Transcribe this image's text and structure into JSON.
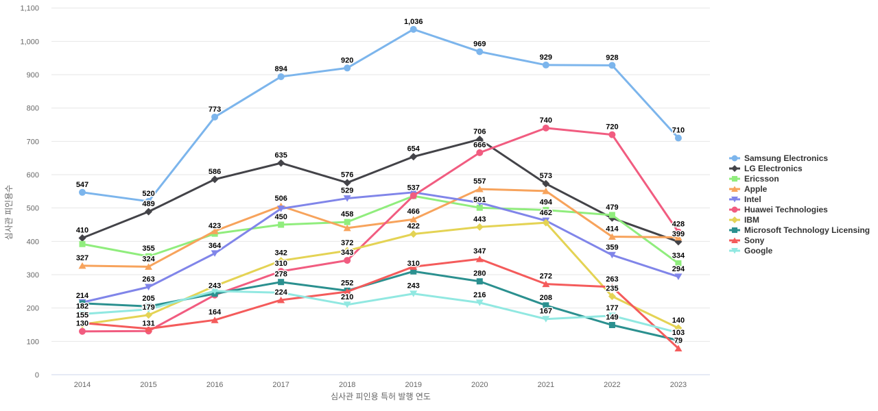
{
  "chart_data": {
    "type": "line",
    "title": "",
    "xlabel": "심사관 피인용 특허 발행 연도",
    "ylabel": "심사관 피인용수",
    "categories": [
      "2014",
      "2015",
      "2016",
      "2017",
      "2018",
      "2019",
      "2020",
      "2021",
      "2022",
      "2023"
    ],
    "ylim": [
      0,
      1100
    ],
    "ytick_interval": 100,
    "yticks": [
      0,
      100,
      200,
      300,
      400,
      500,
      600,
      700,
      800,
      900,
      1000,
      1100
    ],
    "grid": "horizontal",
    "legend_position": "right",
    "series": [
      {
        "name": "Samsung Electronics",
        "color": "#7cb5ec",
        "marker": "circle",
        "values": [
          547,
          520,
          773,
          894,
          920,
          1036,
          969,
          929,
          928,
          710
        ],
        "label_shown": [
          true,
          true,
          true,
          true,
          true,
          true,
          true,
          true,
          true,
          true
        ]
      },
      {
        "name": "LG Electronics",
        "color": "#434348",
        "marker": "diamond",
        "values": [
          410,
          489,
          586,
          635,
          576,
          654,
          706,
          573,
          470,
          399
        ],
        "label_shown": [
          true,
          true,
          true,
          true,
          true,
          true,
          true,
          true,
          false,
          true
        ]
      },
      {
        "name": "Ericsson",
        "color": "#90ed7d",
        "marker": "square",
        "values": [
          392,
          355,
          423,
          450,
          458,
          536,
          501,
          494,
          479,
          334
        ],
        "label_shown": [
          false,
          true,
          true,
          true,
          true,
          false,
          true,
          true,
          true,
          true
        ]
      },
      {
        "name": "Apple",
        "color": "#f7a35c",
        "marker": "triangle",
        "values": [
          327,
          324,
          431,
          506,
          440,
          466,
          557,
          551,
          414,
          412
        ],
        "label_shown": [
          true,
          true,
          false,
          true,
          false,
          true,
          true,
          false,
          true,
          false
        ]
      },
      {
        "name": "Intel",
        "color": "#8085e9",
        "marker": "triangle-down",
        "values": [
          217,
          263,
          364,
          498,
          529,
          547,
          516,
          462,
          359,
          294
        ],
        "label_shown": [
          false,
          true,
          true,
          false,
          true,
          false,
          false,
          true,
          true,
          true
        ]
      },
      {
        "name": "Huawei Technologies",
        "color": "#f15c80",
        "marker": "circle",
        "values": [
          130,
          131,
          239,
          310,
          343,
          537,
          666,
          740,
          720,
          428
        ],
        "label_shown": [
          true,
          true,
          false,
          true,
          true,
          true,
          true,
          true,
          true,
          true
        ]
      },
      {
        "name": "IBM",
        "color": "#e4d354",
        "marker": "diamond",
        "values": [
          151,
          179,
          266,
          342,
          372,
          422,
          443,
          456,
          235,
          140
        ],
        "label_shown": [
          false,
          true,
          false,
          true,
          true,
          true,
          true,
          false,
          true,
          true
        ]
      },
      {
        "name": "Microsoft Technology Licensing",
        "color": "#2b908f",
        "marker": "square",
        "values": [
          214,
          205,
          243,
          278,
          252,
          310,
          280,
          208,
          149,
          103
        ],
        "label_shown": [
          true,
          true,
          true,
          true,
          true,
          true,
          true,
          true,
          true,
          true
        ]
      },
      {
        "name": "Sony",
        "color": "#f45b5b",
        "marker": "triangle",
        "values": [
          155,
          138,
          164,
          224,
          249,
          324,
          347,
          272,
          263,
          79
        ],
        "label_shown": [
          true,
          false,
          true,
          true,
          false,
          false,
          true,
          true,
          true,
          true
        ]
      },
      {
        "name": "Google",
        "color": "#91e8e1",
        "marker": "triangle-down",
        "values": [
          182,
          196,
          251,
          246,
          210,
          243,
          216,
          167,
          177,
          126
        ],
        "label_shown": [
          true,
          false,
          false,
          false,
          true,
          true,
          true,
          true,
          true,
          false
        ]
      }
    ]
  }
}
